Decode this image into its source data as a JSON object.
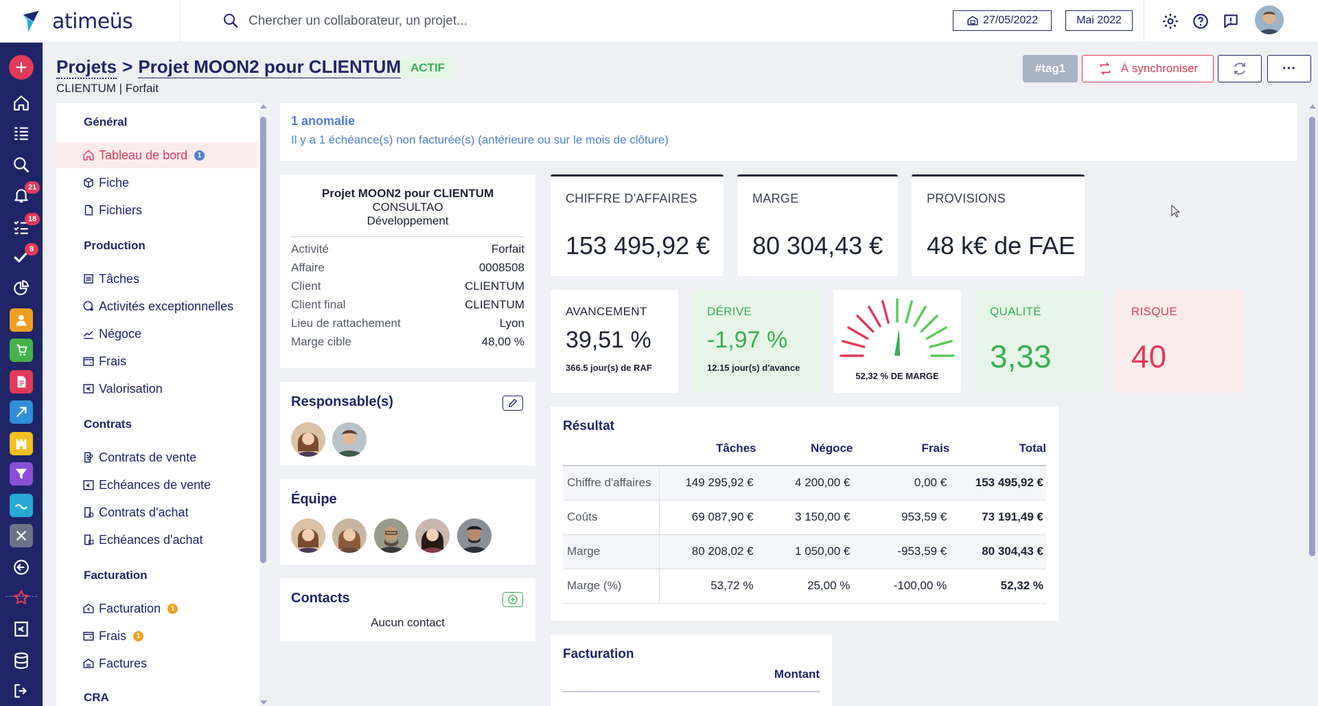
{
  "brand": {
    "name": "atimeüs"
  },
  "search": {
    "placeholder": "Chercher un collaborateur, un projet..."
  },
  "top": {
    "date": "27/05/2022",
    "period": "Mai 2022"
  },
  "rail": {
    "badges": {
      "notifications": "21",
      "tasks": "18",
      "validations": "8"
    }
  },
  "header": {
    "root": "Projets",
    "separator": ">",
    "project": "Projet MOON2 pour CLIENTUM",
    "status": "ACTIF",
    "subtitle": "CLIENTUM | Forfait",
    "tag": "#tag1",
    "sync_label": "À synchroniser",
    "more_label": "···"
  },
  "menu": {
    "sections": {
      "general": "Général",
      "production": "Production",
      "contrats": "Contrats",
      "facturation": "Facturation",
      "cra": "CRA"
    },
    "items": {
      "dashboard": "Tableau de bord",
      "dashboard_badge": "1",
      "fiche": "Fiche",
      "fichiers": "Fichiers",
      "taches": "Tâches",
      "activites": "Activités exceptionnelles",
      "negoce": "Négoce",
      "frais": "Frais",
      "valorisation": "Valorisation",
      "contrats_vente": "Contrats de vente",
      "echeances_vente": "Echéances de vente",
      "contrats_achat": "Contrats d'achat",
      "echeances_achat": "Echéances d'achat",
      "facturation": "Facturation",
      "facturation_badge": "1",
      "frais2": "Frais",
      "frais2_badge": "1",
      "factures": "Factures"
    }
  },
  "anomaly": {
    "title": "1 anomalie",
    "text": "Il y a 1 échéance(s) non facturée(s) (antérieure ou sur le mois de clôture)"
  },
  "project_card": {
    "title": "Projet MOON2 pour CLIENTUM",
    "company": "CONSULTAO",
    "type": "Développement",
    "rows": [
      {
        "k": "Activité",
        "v": "Forfait"
      },
      {
        "k": "Affaire",
        "v": "0008508"
      },
      {
        "k": "Client",
        "v": "CLIENTUM"
      },
      {
        "k": "Client final",
        "v": "CLIENTUM"
      },
      {
        "k": "Lieu de rattachement",
        "v": "Lyon"
      },
      {
        "k": "Marge cible",
        "v": "48,00 %"
      }
    ]
  },
  "responsables": {
    "title": "Responsable(s)"
  },
  "equipe": {
    "title": "Équipe"
  },
  "contacts": {
    "title": "Contacts",
    "empty": "Aucun contact"
  },
  "kpis": {
    "ca": {
      "label": "CHIFFRE D'AFFAIRES",
      "value": "153 495,92 €"
    },
    "marge": {
      "label": "MARGE",
      "value": "80 304,43 €"
    },
    "provisions": {
      "label": "PROVISIONS",
      "value": "48 k€ de FAE"
    },
    "avancement": {
      "label": "AVANCEMENT",
      "value": "39,51 %",
      "note": "366.5 jour(s) de RAF"
    },
    "derive": {
      "label": "DÉRIVE",
      "value": "-1,97 %",
      "note": "12.15 jour(s) d'avance"
    },
    "gauge": {
      "note": "52,32 % DE MARGE",
      "level": 0.5232
    },
    "qualite": {
      "label": "QUALITÉ",
      "value": "3,33"
    },
    "risque": {
      "label": "RISQUE",
      "value": "40"
    }
  },
  "resultat": {
    "title": "Résultat",
    "columns": [
      "Tâches",
      "Négoce",
      "Frais",
      "Total"
    ],
    "rows": [
      {
        "label": "Chiffre d'affaires",
        "cells": [
          "149 295,92 €",
          "4 200,00 €",
          "0,00 €",
          "153 495,92 €"
        ]
      },
      {
        "label": "Coûts",
        "cells": [
          "69 087,90 €",
          "3 150,00 €",
          "953,59 €",
          "73 191,49 €"
        ]
      },
      {
        "label": "Marge",
        "cells": [
          "80 208,02 €",
          "1 050,00 €",
          "-953,59 €",
          "80 304,43 €"
        ]
      },
      {
        "label": "Marge (%)",
        "cells": [
          "53,72 %",
          "25,00 %",
          "-100,00 %",
          "52,32 %"
        ]
      }
    ]
  },
  "facturation": {
    "title": "Facturation",
    "column": "Montant"
  },
  "colors": {
    "navy": "#1f2566",
    "accent": "#e23b5a",
    "green": "#3cae56"
  }
}
